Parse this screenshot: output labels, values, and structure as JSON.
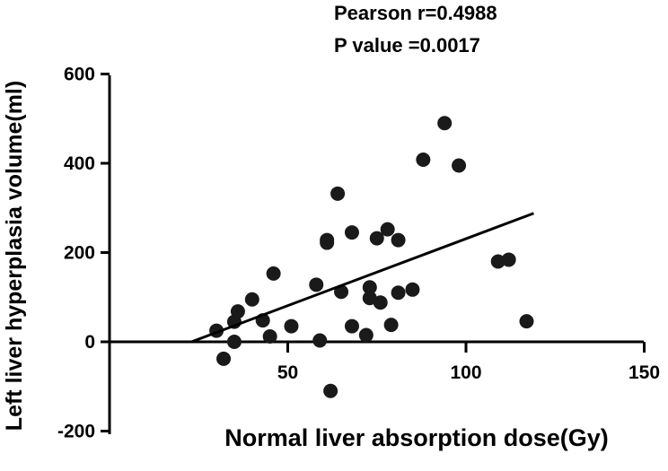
{
  "chart_data": {
    "type": "scatter",
    "title": "",
    "xlabel": "Normal liver absorption dose(Gy)",
    "ylabel": "Left liver hyperplasia volume(ml)",
    "xlim": [
      0,
      150
    ],
    "ylim": [
      -200,
      600
    ],
    "x_ticks": [
      "50",
      "100",
      "150"
    ],
    "y_ticks": [
      "600",
      "400",
      "200",
      "0",
      "-200"
    ],
    "annotations": [
      "Pearson r=0.4988",
      "P value =0.0017"
    ],
    "grid": false,
    "legend": "none",
    "points": [
      {
        "x": 30,
        "y": 25
      },
      {
        "x": 32,
        "y": -38
      },
      {
        "x": 35,
        "y": 0
      },
      {
        "x": 35,
        "y": 45
      },
      {
        "x": 36,
        "y": 68
      },
      {
        "x": 40,
        "y": 95
      },
      {
        "x": 43,
        "y": 48
      },
      {
        "x": 45,
        "y": 12
      },
      {
        "x": 46,
        "y": 153
      },
      {
        "x": 51,
        "y": 35
      },
      {
        "x": 58,
        "y": 128
      },
      {
        "x": 59,
        "y": 3
      },
      {
        "x": 61,
        "y": 222
      },
      {
        "x": 61,
        "y": 228
      },
      {
        "x": 62,
        "y": -110
      },
      {
        "x": 64,
        "y": 332
      },
      {
        "x": 65,
        "y": 112
      },
      {
        "x": 68,
        "y": 35
      },
      {
        "x": 68,
        "y": 245
      },
      {
        "x": 72,
        "y": 15
      },
      {
        "x": 73,
        "y": 122
      },
      {
        "x": 73,
        "y": 98
      },
      {
        "x": 75,
        "y": 232
      },
      {
        "x": 76,
        "y": 88
      },
      {
        "x": 78,
        "y": 252
      },
      {
        "x": 79,
        "y": 38
      },
      {
        "x": 81,
        "y": 110
      },
      {
        "x": 81,
        "y": 228
      },
      {
        "x": 85,
        "y": 117
      },
      {
        "x": 88,
        "y": 408
      },
      {
        "x": 94,
        "y": 490
      },
      {
        "x": 98,
        "y": 395
      },
      {
        "x": 109,
        "y": 180
      },
      {
        "x": 112,
        "y": 184
      },
      {
        "x": 117,
        "y": 46
      }
    ],
    "regression_line": {
      "x": [
        23,
        119
      ],
      "y": [
        0,
        288
      ]
    },
    "colors": {
      "points": "#1a1a1a",
      "line": "#000000",
      "axes": "#000000"
    }
  }
}
